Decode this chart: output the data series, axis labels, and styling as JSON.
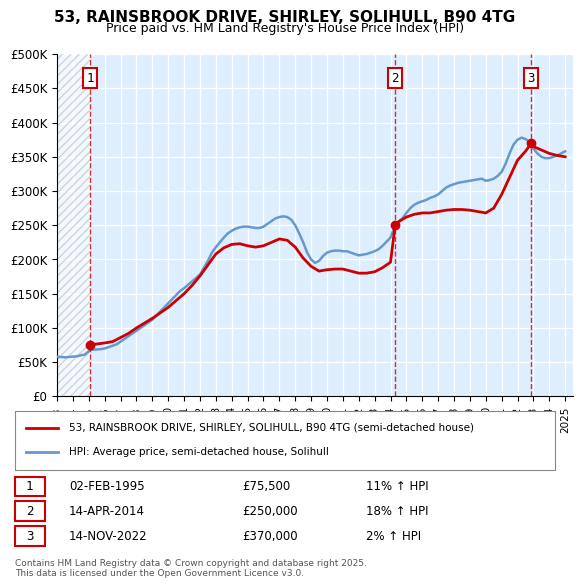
{
  "title": "53, RAINSBROOK DRIVE, SHIRLEY, SOLIHULL, B90 4TG",
  "subtitle": "Price paid vs. HM Land Registry's House Price Index (HPI)",
  "ylabel": "",
  "background_color": "#ffffff",
  "plot_bg_color": "#ddeeff",
  "grid_color": "#ffffff",
  "hatch_color": "#cccccc",
  "ylim": [
    0,
    500000
  ],
  "yticks": [
    0,
    50000,
    100000,
    150000,
    200000,
    250000,
    300000,
    350000,
    400000,
    450000,
    500000
  ],
  "ytick_labels": [
    "£0",
    "£50K",
    "£100K",
    "£150K",
    "£200K",
    "£250K",
    "£300K",
    "£350K",
    "£400K",
    "£450K",
    "£500K"
  ],
  "xlim_start": 1993.0,
  "xlim_end": 2025.5,
  "purchases": [
    {
      "num": 1,
      "date_str": "02-FEB-1995",
      "date_x": 1995.09,
      "price": 75500,
      "hpi_pct": "11%",
      "color": "#cc0000"
    },
    {
      "num": 2,
      "date_str": "14-APR-2014",
      "date_x": 2014.29,
      "price": 250000,
      "hpi_pct": "18%",
      "color": "#cc0000"
    },
    {
      "num": 3,
      "date_str": "14-NOV-2022",
      "date_x": 2022.87,
      "price": 370000,
      "hpi_pct": "2%",
      "color": "#cc0000"
    }
  ],
  "red_line_color": "#cc0000",
  "blue_line_color": "#6699cc",
  "legend_label_red": "53, RAINSBROOK DRIVE, SHIRLEY, SOLIHULL, B90 4TG (semi-detached house)",
  "legend_label_blue": "HPI: Average price, semi-detached house, Solihull",
  "footer": "Contains HM Land Registry data © Crown copyright and database right 2025.\nThis data is licensed under the Open Government Licence v3.0.",
  "hpi_series_x": [
    1993.0,
    1993.25,
    1993.5,
    1993.75,
    1994.0,
    1994.25,
    1994.5,
    1994.75,
    1995.09,
    1995.5,
    1995.75,
    1996.0,
    1996.25,
    1996.5,
    1996.75,
    1997.0,
    1997.25,
    1997.5,
    1997.75,
    1998.0,
    1998.25,
    1998.5,
    1998.75,
    1999.0,
    1999.25,
    1999.5,
    1999.75,
    2000.0,
    2000.25,
    2000.5,
    2000.75,
    2001.0,
    2001.25,
    2001.5,
    2001.75,
    2002.0,
    2002.25,
    2002.5,
    2002.75,
    2003.0,
    2003.25,
    2003.5,
    2003.75,
    2004.0,
    2004.25,
    2004.5,
    2004.75,
    2005.0,
    2005.25,
    2005.5,
    2005.75,
    2006.0,
    2006.25,
    2006.5,
    2006.75,
    2007.0,
    2007.25,
    2007.5,
    2007.75,
    2008.0,
    2008.25,
    2008.5,
    2008.75,
    2009.0,
    2009.25,
    2009.5,
    2009.75,
    2010.0,
    2010.25,
    2010.5,
    2010.75,
    2011.0,
    2011.25,
    2011.5,
    2011.75,
    2012.0,
    2012.25,
    2012.5,
    2012.75,
    2013.0,
    2013.25,
    2013.5,
    2013.75,
    2014.0,
    2014.29,
    2014.5,
    2014.75,
    2015.0,
    2015.25,
    2015.5,
    2015.75,
    2016.0,
    2016.25,
    2016.5,
    2016.75,
    2017.0,
    2017.25,
    2017.5,
    2017.75,
    2018.0,
    2018.25,
    2018.5,
    2018.75,
    2019.0,
    2019.25,
    2019.5,
    2019.75,
    2020.0,
    2020.25,
    2020.5,
    2020.75,
    2021.0,
    2021.25,
    2021.5,
    2021.75,
    2022.0,
    2022.25,
    2022.5,
    2022.87,
    2023.0,
    2023.25,
    2023.5,
    2023.75,
    2024.0,
    2024.25,
    2024.5,
    2024.75,
    2025.0
  ],
  "hpi_series_y": [
    58000,
    57500,
    57000,
    57500,
    58000,
    58500,
    60000,
    61000,
    68000,
    68500,
    69000,
    70000,
    72000,
    74000,
    76000,
    80000,
    84000,
    88000,
    92000,
    96000,
    100000,
    104000,
    108000,
    112000,
    118000,
    124000,
    130000,
    136000,
    142000,
    148000,
    154000,
    158000,
    163000,
    168000,
    173000,
    178000,
    188000,
    198000,
    210000,
    218000,
    225000,
    232000,
    238000,
    242000,
    245000,
    247000,
    248000,
    248000,
    247000,
    246000,
    246000,
    248000,
    252000,
    256000,
    260000,
    262000,
    263000,
    262000,
    258000,
    250000,
    238000,
    225000,
    210000,
    200000,
    195000,
    198000,
    205000,
    210000,
    212000,
    213000,
    213000,
    212000,
    212000,
    210000,
    208000,
    206000,
    207000,
    208000,
    210000,
    212000,
    215000,
    220000,
    226000,
    232000,
    250000,
    255000,
    260000,
    268000,
    275000,
    280000,
    283000,
    285000,
    287000,
    290000,
    292000,
    295000,
    300000,
    305000,
    308000,
    310000,
    312000,
    313000,
    314000,
    315000,
    316000,
    317000,
    318000,
    315000,
    316000,
    318000,
    322000,
    328000,
    340000,
    355000,
    368000,
    375000,
    378000,
    376000,
    370000,
    362000,
    355000,
    350000,
    348000,
    348000,
    350000,
    352000,
    355000,
    358000
  ],
  "price_series_x": [
    1995.09,
    1995.5,
    1996.0,
    1996.5,
    1997.0,
    1997.5,
    1998.0,
    1998.5,
    1999.0,
    1999.5,
    2000.0,
    2000.5,
    2001.0,
    2001.5,
    2002.0,
    2002.5,
    2003.0,
    2003.5,
    2004.0,
    2004.5,
    2005.0,
    2005.5,
    2006.0,
    2006.5,
    2007.0,
    2007.5,
    2008.0,
    2008.5,
    2009.0,
    2009.5,
    2010.0,
    2010.5,
    2011.0,
    2011.5,
    2012.0,
    2012.5,
    2013.0,
    2013.5,
    2014.0,
    2014.29,
    2014.5,
    2015.0,
    2015.5,
    2016.0,
    2016.5,
    2017.0,
    2017.5,
    2018.0,
    2018.5,
    2019.0,
    2019.5,
    2020.0,
    2020.5,
    2021.0,
    2021.5,
    2022.0,
    2022.5,
    2022.87,
    2023.0,
    2023.5,
    2024.0,
    2024.5,
    2025.0
  ],
  "price_series_y": [
    75500,
    76500,
    78000,
    80000,
    86000,
    92000,
    100000,
    107000,
    114000,
    122000,
    130000,
    140000,
    150000,
    162000,
    176000,
    192000,
    208000,
    217000,
    222000,
    223000,
    220000,
    218000,
    220000,
    225000,
    230000,
    228000,
    218000,
    202000,
    190000,
    183000,
    185000,
    186000,
    186000,
    183000,
    180000,
    180000,
    182000,
    188000,
    196000,
    250000,
    255000,
    262000,
    266000,
    268000,
    268000,
    270000,
    272000,
    273000,
    273000,
    272000,
    270000,
    268000,
    275000,
    295000,
    320000,
    345000,
    358000,
    370000,
    365000,
    360000,
    355000,
    352000,
    350000
  ]
}
